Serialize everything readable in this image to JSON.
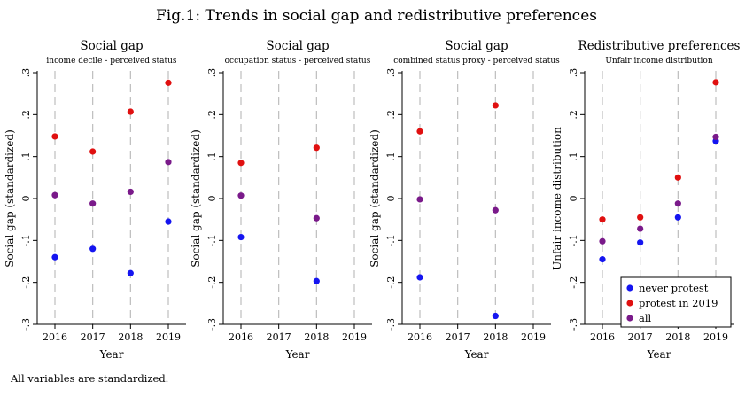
{
  "figure": {
    "title": "Fig.1: Trends in social gap and redistributive preferences",
    "note": "All variables are standardized."
  },
  "colors": {
    "never_protest": "#1515f0",
    "protest_2019": "#e01010",
    "all": "#7a1a8a",
    "gridline": "#bdbdbd"
  },
  "chart_data": [
    {
      "type": "scatter",
      "title": "Social gap",
      "subtitle": "income decile - perceived status",
      "xlabel": "Year",
      "ylabel": "Social gap (standardized)",
      "x": [
        2016,
        2017,
        2018,
        2019
      ],
      "xticks": [
        "2016",
        "2017",
        "2018",
        "2019"
      ],
      "yticks": [
        -0.3,
        -0.2,
        -0.1,
        0,
        0.1,
        0.2,
        0.3
      ],
      "ytick_labels": [
        "-.3",
        "-.2",
        "-.1",
        "0",
        ".1",
        ".2",
        ".3"
      ],
      "ylim": [
        -0.3,
        0.3
      ],
      "grid": "vertical dashed",
      "series": [
        {
          "key": "never_protest",
          "values": [
            -0.14,
            -0.12,
            -0.178,
            -0.055
          ]
        },
        {
          "key": "protest_2019",
          "values": [
            0.148,
            0.112,
            0.207,
            0.276
          ]
        },
        {
          "key": "all",
          "values": [
            0.008,
            -0.012,
            0.016,
            0.087
          ]
        }
      ]
    },
    {
      "type": "scatter",
      "title": "Social gap",
      "subtitle": "occupation status - perceived status",
      "xlabel": "Year",
      "ylabel": "Social gap (standardized)",
      "x": [
        2016,
        2017,
        2018,
        2019
      ],
      "xticks": [
        "2016",
        "2017",
        "2018",
        "2019"
      ],
      "yticks": [
        -0.3,
        -0.2,
        -0.1,
        0,
        0.1,
        0.2,
        0.3
      ],
      "ytick_labels": [
        "-.3",
        "-.2",
        "-.1",
        "0",
        ".1",
        ".2",
        ".3"
      ],
      "ylim": [
        -0.3,
        0.3
      ],
      "grid": "vertical dashed",
      "series": [
        {
          "key": "never_protest",
          "values": [
            -0.092,
            null,
            -0.197,
            null
          ]
        },
        {
          "key": "protest_2019",
          "values": [
            0.085,
            null,
            0.121,
            null
          ]
        },
        {
          "key": "all",
          "values": [
            0.007,
            null,
            -0.047,
            null
          ]
        }
      ]
    },
    {
      "type": "scatter",
      "title": "Social gap",
      "subtitle": "combined status proxy - perceived status",
      "xlabel": "Year",
      "ylabel": "Social gap (standardized)",
      "x": [
        2016,
        2017,
        2018,
        2019
      ],
      "xticks": [
        "2016",
        "2017",
        "2018",
        "2019"
      ],
      "yticks": [
        -0.3,
        -0.2,
        -0.1,
        0,
        0.1,
        0.2,
        0.3
      ],
      "ytick_labels": [
        "-.3",
        "-.2",
        "-.1",
        "0",
        ".1",
        ".2",
        ".3"
      ],
      "ylim": [
        -0.3,
        0.3
      ],
      "grid": "vertical dashed",
      "series": [
        {
          "key": "never_protest",
          "values": [
            -0.188,
            null,
            -0.28,
            null
          ]
        },
        {
          "key": "protest_2019",
          "values": [
            0.16,
            null,
            0.222,
            null
          ]
        },
        {
          "key": "all",
          "values": [
            -0.002,
            null,
            -0.028,
            null
          ]
        }
      ]
    },
    {
      "type": "scatter",
      "title": "Redistributive preferences",
      "subtitle": "Unfair income distribution",
      "xlabel": "Year",
      "ylabel": "Unfair income distribution",
      "x": [
        2016,
        2017,
        2018,
        2019
      ],
      "xticks": [
        "2016",
        "2017",
        "2018",
        "2019"
      ],
      "yticks": [
        -0.3,
        -0.2,
        -0.1,
        0,
        0.1,
        0.2,
        0.3
      ],
      "ytick_labels": [
        "-.3",
        "-.2",
        "-.1",
        "0",
        ".1",
        ".2",
        ".3"
      ],
      "ylim": [
        -0.3,
        0.3
      ],
      "grid": "vertical dashed",
      "legend": {
        "placement": "bottom-right",
        "entries": [
          {
            "key": "never_protest",
            "label": "never protest"
          },
          {
            "key": "protest_2019",
            "label": "protest in 2019"
          },
          {
            "key": "all",
            "label": "all"
          }
        ]
      },
      "series": [
        {
          "key": "never_protest",
          "values": [
            -0.145,
            -0.105,
            -0.045,
            0.137
          ]
        },
        {
          "key": "protest_2019",
          "values": [
            -0.05,
            -0.045,
            0.05,
            0.277
          ]
        },
        {
          "key": "all",
          "values": [
            -0.102,
            -0.072,
            -0.012,
            0.147
          ]
        }
      ]
    }
  ]
}
